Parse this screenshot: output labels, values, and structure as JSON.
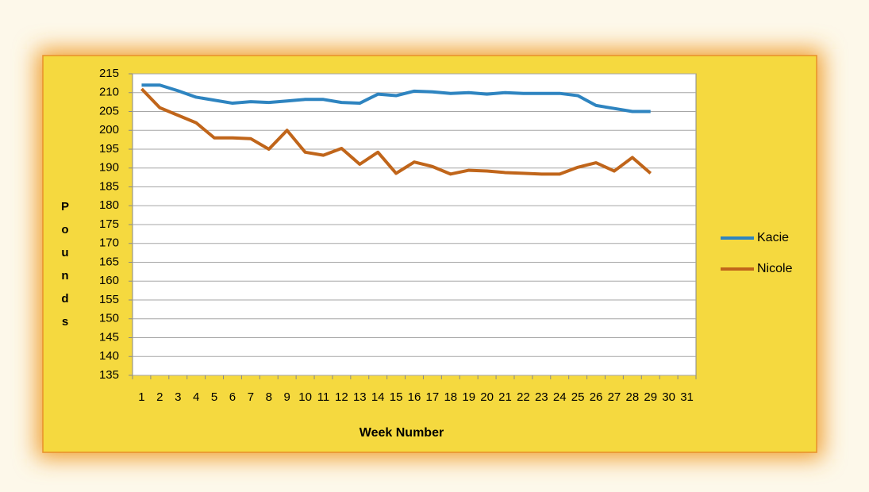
{
  "chart_data": {
    "type": "line",
    "x_label": "Week Number",
    "y_label": "Pounds",
    "categories": [
      "1",
      "2",
      "3",
      "4",
      "5",
      "6",
      "7",
      "8",
      "9",
      "10",
      "11",
      "12",
      "13",
      "14",
      "15",
      "16",
      "17",
      "18",
      "19",
      "20",
      "21",
      "22",
      "23",
      "24",
      "25",
      "26",
      "27",
      "28",
      "29",
      "30",
      "31"
    ],
    "series": [
      {
        "name": "Kacie",
        "color": "#2e84c0",
        "values": [
          212,
          212,
          210.5,
          208.8,
          208,
          207.2,
          207.6,
          207.4,
          207.8,
          208.2,
          208.2,
          207.4,
          207.2,
          209.6,
          209.2,
          210.4,
          210.2,
          209.8,
          210,
          209.6,
          210,
          209.8,
          209.8,
          209.8,
          209.2,
          206.6,
          205.8,
          205,
          205,
          null,
          null
        ]
      },
      {
        "name": "Nicole",
        "color": "#c0651a",
        "values": [
          211,
          206,
          204,
          202,
          198,
          198,
          197.8,
          195,
          200,
          194.2,
          193.4,
          195.2,
          191,
          194.2,
          188.6,
          191.6,
          190.4,
          188.4,
          189.4,
          189.2,
          188.8,
          188.6,
          188.4,
          188.4,
          190.2,
          191.4,
          189.2,
          192.8,
          188.6,
          null,
          null
        ]
      }
    ],
    "ylim": [
      135,
      215
    ],
    "yticks": [
      135,
      140,
      145,
      150,
      155,
      160,
      165,
      170,
      175,
      180,
      185,
      190,
      195,
      200,
      205,
      210,
      215
    ],
    "grid": true,
    "legend": "right"
  }
}
